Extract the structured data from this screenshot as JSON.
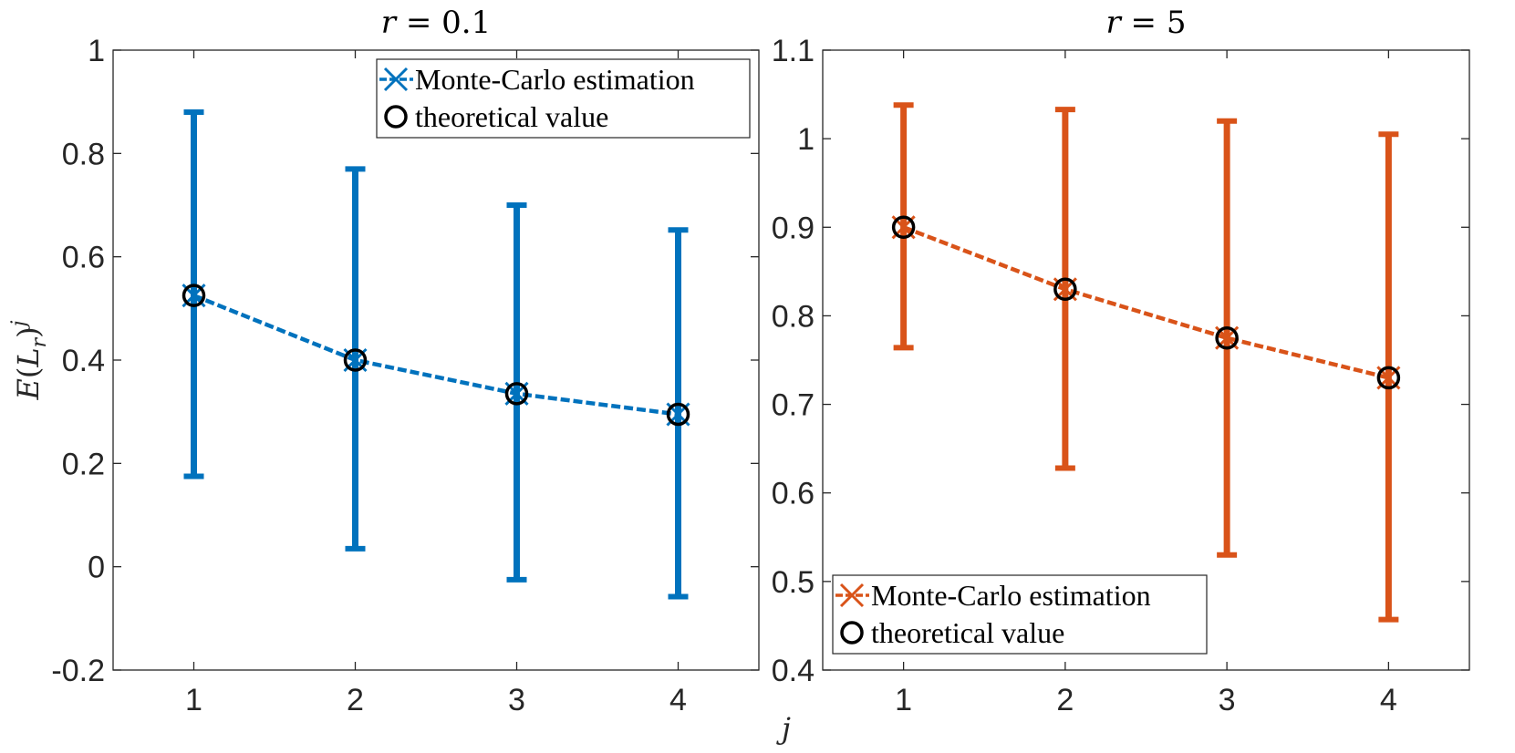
{
  "chart_data": [
    {
      "type": "line",
      "subtype": "errorbar",
      "title": "r = 0.1",
      "xlabel": "j",
      "ylabel": "E(L_r)^j",
      "x": [
        1,
        2,
        3,
        4
      ],
      "xlim": [
        0.5,
        4.5
      ],
      "ylim": [
        -0.2,
        1.0
      ],
      "xticks": [
        1,
        2,
        3,
        4
      ],
      "xtick_labels": [
        "1",
        "2",
        "3",
        "4"
      ],
      "yticks": [
        -0.2,
        0,
        0.2,
        0.4,
        0.6,
        0.8,
        1
      ],
      "ytick_labels": [
        "-0.2",
        "0",
        "0.2",
        "0.4",
        "0.6",
        "0.8",
        "1"
      ],
      "grid": false,
      "legend_location": "top-right",
      "series": [
        {
          "name": "Monte-Carlo estimation",
          "color": "#0072BD",
          "marker": "x",
          "line": "dashed",
          "values": [
            0.525,
            0.4,
            0.335,
            0.295
          ],
          "err_lower": [
            0.175,
            0.035,
            -0.025,
            -0.058
          ],
          "err_upper": [
            0.88,
            0.77,
            0.7,
            0.652
          ]
        },
        {
          "name": "theoretical value",
          "color": "#000000",
          "marker": "o",
          "values": [
            0.525,
            0.4,
            0.335,
            0.295
          ]
        }
      ]
    },
    {
      "type": "line",
      "subtype": "errorbar",
      "title": "r = 5",
      "xlabel": "j",
      "ylabel": "",
      "x": [
        1,
        2,
        3,
        4
      ],
      "xlim": [
        0.5,
        4.5
      ],
      "ylim": [
        0.4,
        1.1
      ],
      "xticks": [
        1,
        2,
        3,
        4
      ],
      "xtick_labels": [
        "1",
        "2",
        "3",
        "4"
      ],
      "yticks": [
        0.4,
        0.5,
        0.6,
        0.7,
        0.8,
        0.9,
        1,
        1.1
      ],
      "ytick_labels": [
        "0.4",
        "0.5",
        "0.6",
        "0.7",
        "0.8",
        "0.9",
        "1",
        "1.1"
      ],
      "grid": false,
      "legend_location": "bottom-left",
      "series": [
        {
          "name": "Monte-Carlo estimation",
          "color": "#D95319",
          "marker": "x",
          "line": "dashed",
          "values": [
            0.9,
            0.83,
            0.775,
            0.73
          ],
          "err_lower": [
            0.764,
            0.628,
            0.53,
            0.457
          ],
          "err_upper": [
            1.038,
            1.033,
            1.02,
            1.005
          ]
        },
        {
          "name": "theoretical value",
          "color": "#000000",
          "marker": "o",
          "values": [
            0.9,
            0.83,
            0.775,
            0.73
          ]
        }
      ]
    }
  ]
}
